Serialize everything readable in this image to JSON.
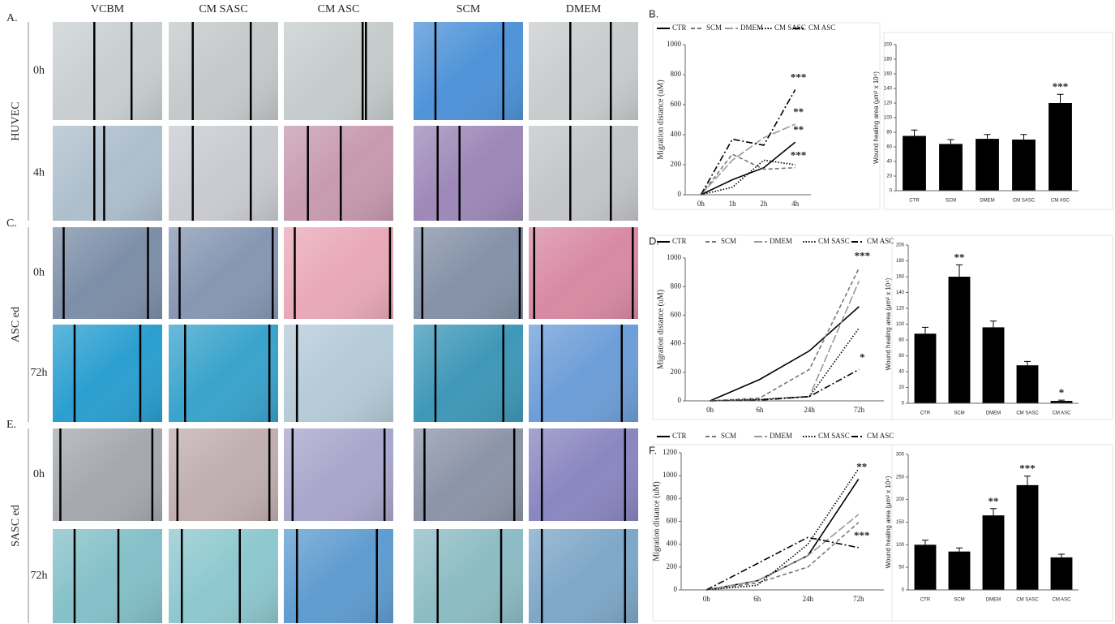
{
  "image_panels": {
    "columns": [
      "VCBM",
      "CM SASC",
      "CM ASC",
      "SCM",
      "DMEM"
    ],
    "groups": [
      {
        "label": "A.",
        "name": "HUVEC",
        "times": [
          "0h",
          "4h"
        ]
      },
      {
        "label": "C.",
        "name": "ASC ed",
        "times": [
          "0h",
          "72h"
        ]
      },
      {
        "label": "E.",
        "name": "SASC ed",
        "times": [
          "0h",
          "72h"
        ]
      }
    ]
  },
  "chart_data": [
    {
      "type": "line",
      "panel_label": "B.",
      "y_label": "Migration distance (uM)",
      "categories": [
        "0h",
        "1h",
        "2h",
        "4h"
      ],
      "ylim": [
        0,
        1000
      ],
      "yticks": [
        0,
        200,
        400,
        600,
        800,
        1000
      ],
      "grid": false,
      "series": [
        {
          "name": "CTR",
          "color": "#000000",
          "dash": "none",
          "values": [
            0,
            100,
            180,
            350
          ],
          "annotation": "**"
        },
        {
          "name": "SCM",
          "color": "#777777",
          "dash": "5 3",
          "values": [
            0,
            270,
            170,
            180
          ],
          "annotation": "***"
        },
        {
          "name": "DMEM",
          "color": "#999999",
          "dash": "10 3",
          "values": [
            0,
            230,
            380,
            470
          ],
          "annotation": "**"
        },
        {
          "name": "CM SASC",
          "color": "#000000",
          "dash": "1.5 2",
          "values": [
            0,
            50,
            230,
            200
          ]
        },
        {
          "name": "CM ASC",
          "color": "#000000",
          "dash": "8 3 2 3",
          "values": [
            0,
            370,
            330,
            700
          ],
          "annotation": "***"
        }
      ]
    },
    {
      "type": "bar",
      "y_label": "Wound healing area (μm² x 10⁴)",
      "color": "#000000",
      "categories": [
        "CTR",
        "SCM",
        "DMEM",
        "CM SASC",
        "CM ASC"
      ],
      "values": [
        75,
        64,
        71,
        70,
        120
      ],
      "errors": [
        8,
        6,
        6,
        7,
        12
      ],
      "annotations": [
        null,
        null,
        null,
        null,
        "***"
      ],
      "ylim": [
        0,
        200
      ],
      "yticks": [
        0,
        20,
        40,
        60,
        80,
        100,
        120,
        140,
        160,
        180,
        200
      ],
      "grid": false
    },
    {
      "type": "line",
      "panel_label": "D.",
      "y_label": "Migration distance (uM)",
      "categories": [
        "0h",
        "6h",
        "24h",
        "72h"
      ],
      "ylim": [
        0,
        1000
      ],
      "yticks": [
        0,
        200,
        400,
        600,
        800,
        1000
      ],
      "grid": false,
      "series": [
        {
          "name": "CTR",
          "color": "#000000",
          "dash": "none",
          "values": [
            0,
            150,
            350,
            660
          ]
        },
        {
          "name": "SCM",
          "color": "#777777",
          "dash": "5 3",
          "values": [
            0,
            20,
            220,
            930
          ],
          "annotation": "***"
        },
        {
          "name": "DMEM",
          "color": "#999999",
          "dash": "10 3",
          "values": [
            0,
            10,
            30,
            840
          ]
        },
        {
          "name": "CM SASC",
          "color": "#000000",
          "dash": "1.5 2",
          "values": [
            0,
            10,
            30,
            510
          ]
        },
        {
          "name": "CM ASC",
          "color": "#000000",
          "dash": "8 3 2 3",
          "values": [
            0,
            5,
            30,
            220
          ],
          "annotation": "*"
        }
      ]
    },
    {
      "type": "bar",
      "y_label": "Wound healing area (μm² x 10⁴)",
      "color": "#000000",
      "categories": [
        "CTR",
        "SCM",
        "DMEM",
        "CM SASC",
        "CM ASC"
      ],
      "values": [
        88,
        160,
        96,
        48,
        3
      ],
      "errors": [
        8,
        15,
        8,
        5,
        1
      ],
      "annotations": [
        null,
        "**",
        null,
        null,
        "*"
      ],
      "ylim": [
        0,
        200
      ],
      "yticks": [
        0,
        20,
        40,
        60,
        80,
        100,
        120,
        140,
        160,
        180,
        200
      ],
      "grid": false
    },
    {
      "type": "line",
      "panel_label": "F.",
      "y_label": "Migration distance (uM)",
      "categories": [
        "0h",
        "6h",
        "24h",
        "72h"
      ],
      "ylim": [
        0,
        1200
      ],
      "yticks": [
        0,
        200,
        400,
        600,
        800,
        1000,
        1200
      ],
      "grid": false,
      "series": [
        {
          "name": "CTR",
          "color": "#000000",
          "dash": "none",
          "values": [
            0,
            80,
            300,
            970
          ],
          "annotation": "**"
        },
        {
          "name": "SCM",
          "color": "#777777",
          "dash": "5 3",
          "values": [
            0,
            60,
            200,
            590
          ]
        },
        {
          "name": "DMEM",
          "color": "#999999",
          "dash": "10 3",
          "values": [
            0,
            80,
            300,
            660
          ]
        },
        {
          "name": "CM SASC",
          "color": "#000000",
          "dash": "1.5 2",
          "values": [
            0,
            40,
            400,
            1060
          ]
        },
        {
          "name": "CM ASC",
          "color": "#000000",
          "dash": "8 3 2 3",
          "values": [
            0,
            230,
            460,
            370
          ],
          "annotation": "***"
        }
      ]
    },
    {
      "type": "bar",
      "y_label": "Wound healing area (μm² x 10⁴)",
      "color": "#000000",
      "categories": [
        "CTR",
        "SCM",
        "DMEM",
        "CM SASC",
        "CM ASC"
      ],
      "values": [
        100,
        85,
        165,
        232,
        72
      ],
      "errors": [
        10,
        8,
        15,
        20,
        7
      ],
      "annotations": [
        null,
        null,
        "**",
        "***",
        null
      ],
      "ylim": [
        0,
        300
      ],
      "yticks": [
        0,
        50,
        100,
        150,
        200,
        250,
        300
      ],
      "grid": false
    }
  ]
}
